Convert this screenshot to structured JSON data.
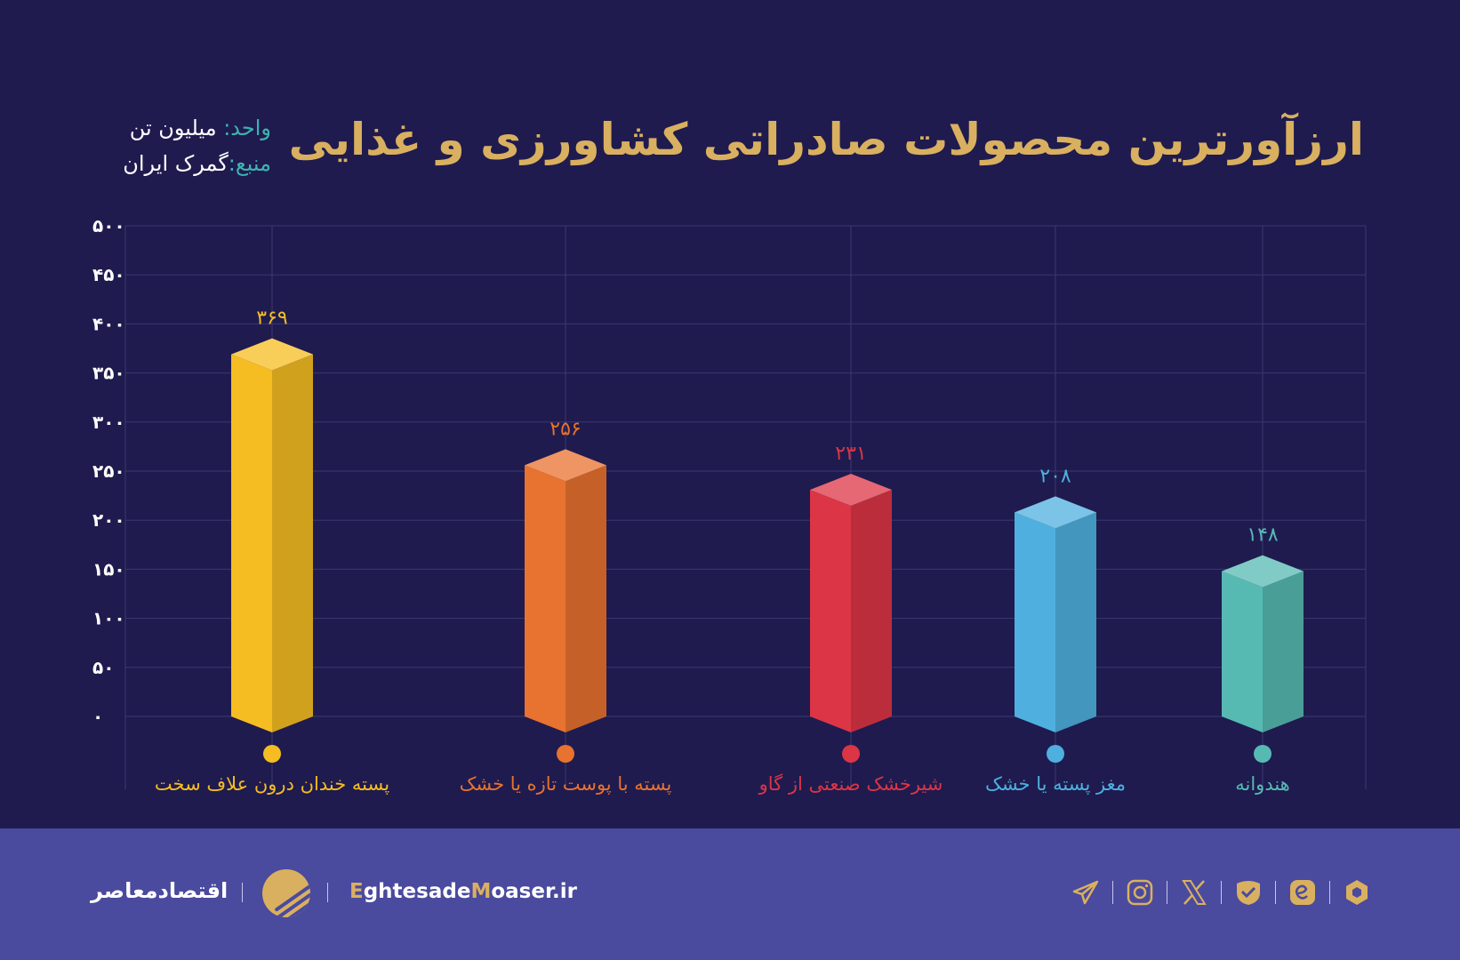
{
  "title": "ارزآورترین محصولات صادراتی کشاورزی و غذایی",
  "meta": {
    "unit_label": "واحد:",
    "unit_value": "میلیون تن",
    "source_label": "منبع:",
    "source_value": "گمرک ایران"
  },
  "chart_data": {
    "type": "bar",
    "categories": [
      "پسته خندان درون علاف سخت",
      "پسته با پوست تازه یا خشک",
      "شیرخشک صنعتی از گاو",
      "مغز پسته یا خشک",
      "هندوانه"
    ],
    "values": [
      369,
      256,
      231,
      208,
      148
    ],
    "data_labels": [
      "۳۶۹",
      "۲۵۶",
      "۲۳۱",
      "۲۰۸",
      "۱۴۸"
    ],
    "colors": [
      "#f5bd22",
      "#e8722f",
      "#dc3545",
      "#4fb0df",
      "#56bab3"
    ],
    "ylim": [
      0,
      500
    ],
    "y_ticks": [
      0,
      50,
      100,
      150,
      200,
      250,
      300,
      350,
      400,
      450,
      500
    ],
    "y_tick_labels": [
      "۰",
      "۵۰",
      "۱۰۰",
      "۱۵۰",
      "۲۰۰",
      "۲۵۰",
      "۳۰۰",
      "۳۵۰",
      "۴۰۰",
      "۴۵۰",
      "۵۰۰"
    ],
    "grid": true,
    "style": "3d-prism"
  },
  "footer": {
    "brand_fa": "اقتصادمعاصر",
    "site_e": "E",
    "site_mid": "ghtesade",
    "site_m": "M",
    "site_end": "oaser.ir",
    "socials": [
      "telegram-icon",
      "instagram-icon",
      "x-icon",
      "check-shield-icon",
      "eitaa-icon",
      "rubika-icon"
    ]
  }
}
